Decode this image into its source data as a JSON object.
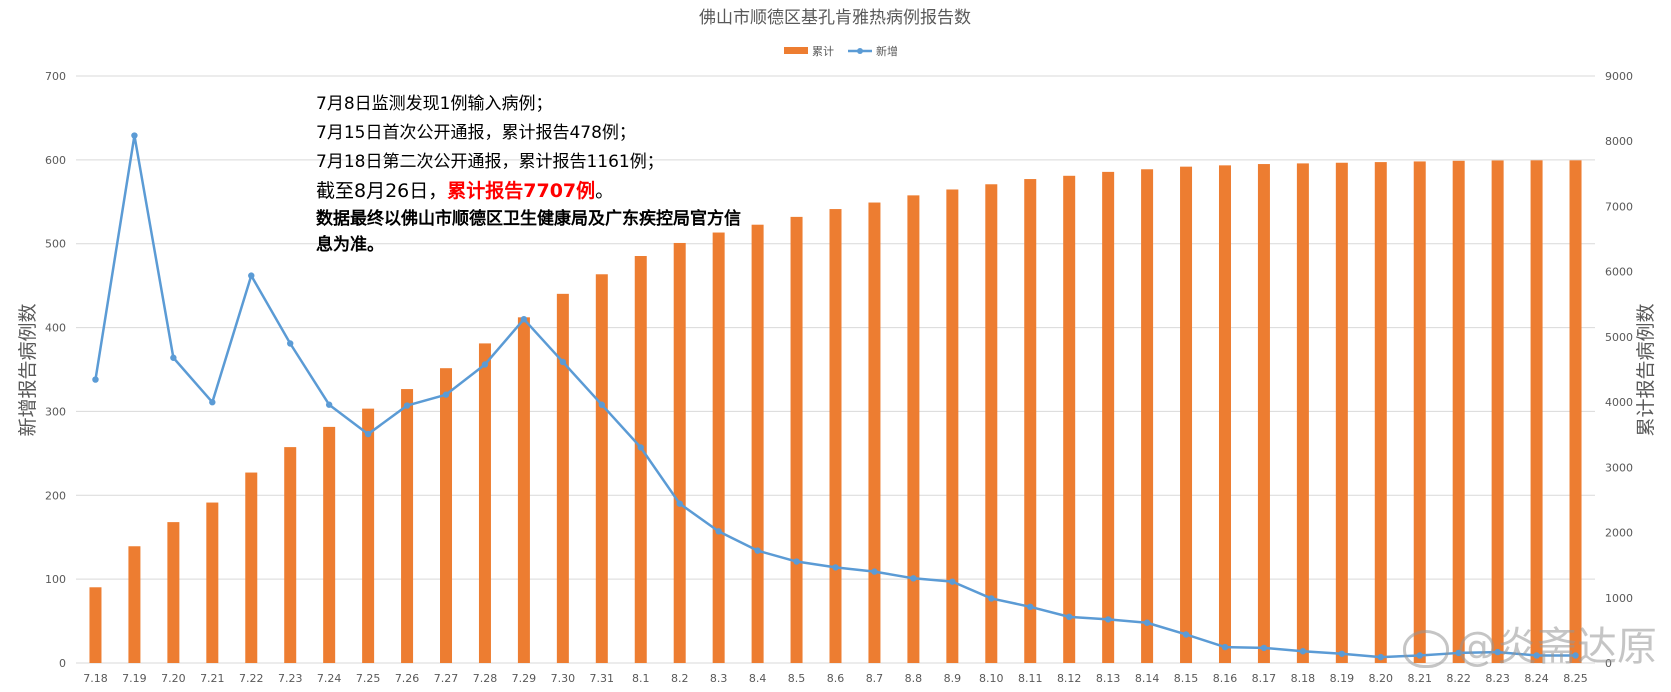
{
  "chart_data": {
    "type": "bar+line",
    "title": "佛山市顺德区基孔肯雅热病例报告数",
    "legend": {
      "position": "top",
      "items": [
        "累计",
        "新增"
      ]
    },
    "categories": [
      "7.18",
      "7.19",
      "7.20",
      "7.21",
      "7.22",
      "7.23",
      "7.24",
      "7.25",
      "7.26",
      "7.27",
      "7.28",
      "7.29",
      "7.30",
      "7.31",
      "8.1",
      "8.2",
      "8.3",
      "8.4",
      "8.5",
      "8.6",
      "8.7",
      "8.8",
      "8.9",
      "8.10",
      "8.11",
      "8.12",
      "8.13",
      "8.14",
      "8.15",
      "8.16",
      "8.17",
      "8.18",
      "8.19",
      "8.20",
      "8.21",
      "8.22",
      "8.23",
      "8.24",
      "8.25"
    ],
    "series": [
      {
        "name": "累计",
        "type": "bar",
        "axis": "right",
        "color": "#ed7d31",
        "values": [
          1161,
          1790,
          2160,
          2460,
          2920,
          3310,
          3620,
          3900,
          4200,
          4520,
          4900,
          5300,
          5660,
          5960,
          6240,
          6440,
          6600,
          6720,
          6840,
          6960,
          7060,
          7170,
          7260,
          7340,
          7420,
          7470,
          7530,
          7570,
          7610,
          7630,
          7650,
          7660,
          7670,
          7680,
          7690,
          7700,
          7705,
          7707,
          7707
        ]
      },
      {
        "name": "新增",
        "type": "line",
        "axis": "left",
        "color": "#5b9bd5",
        "values": [
          338,
          629,
          364,
          311,
          462,
          381,
          308,
          273,
          307,
          320,
          356,
          410,
          359,
          308,
          257,
          190,
          157,
          134,
          121,
          114,
          109,
          101,
          97,
          77,
          67,
          55,
          52,
          48,
          34,
          19,
          18,
          14,
          11,
          7,
          9,
          12,
          13,
          9,
          9
        ]
      }
    ],
    "y_left": {
      "label": "新增报告病例数",
      "min": 0,
      "max": 700,
      "ticks": [
        "0",
        "100",
        "200",
        "300",
        "400",
        "500",
        "600",
        "700"
      ]
    },
    "y_right": {
      "label": "累计报告病例数",
      "min": 0,
      "max": 9000,
      "ticks": [
        "0",
        "1000",
        "2000",
        "3000",
        "4000",
        "5000",
        "6000",
        "7000",
        "8000",
        "9000"
      ]
    },
    "grid": true
  },
  "annotation": {
    "line1": "7月8日监测发现1例输入病例；",
    "line2": "7月15日首次公开通报，累计报告478例；",
    "line3": "7月18日第二次公开通报，累计报告1161例；",
    "line4_prefix": "截至8月26日，",
    "line4_highlight": "累计报告7707例",
    "line4_suffix": "。",
    "line5": "数据最终以佛山市顺德区卫生健康局及广东疾控局官方信息为准。"
  },
  "watermark": "@炎斋达原"
}
